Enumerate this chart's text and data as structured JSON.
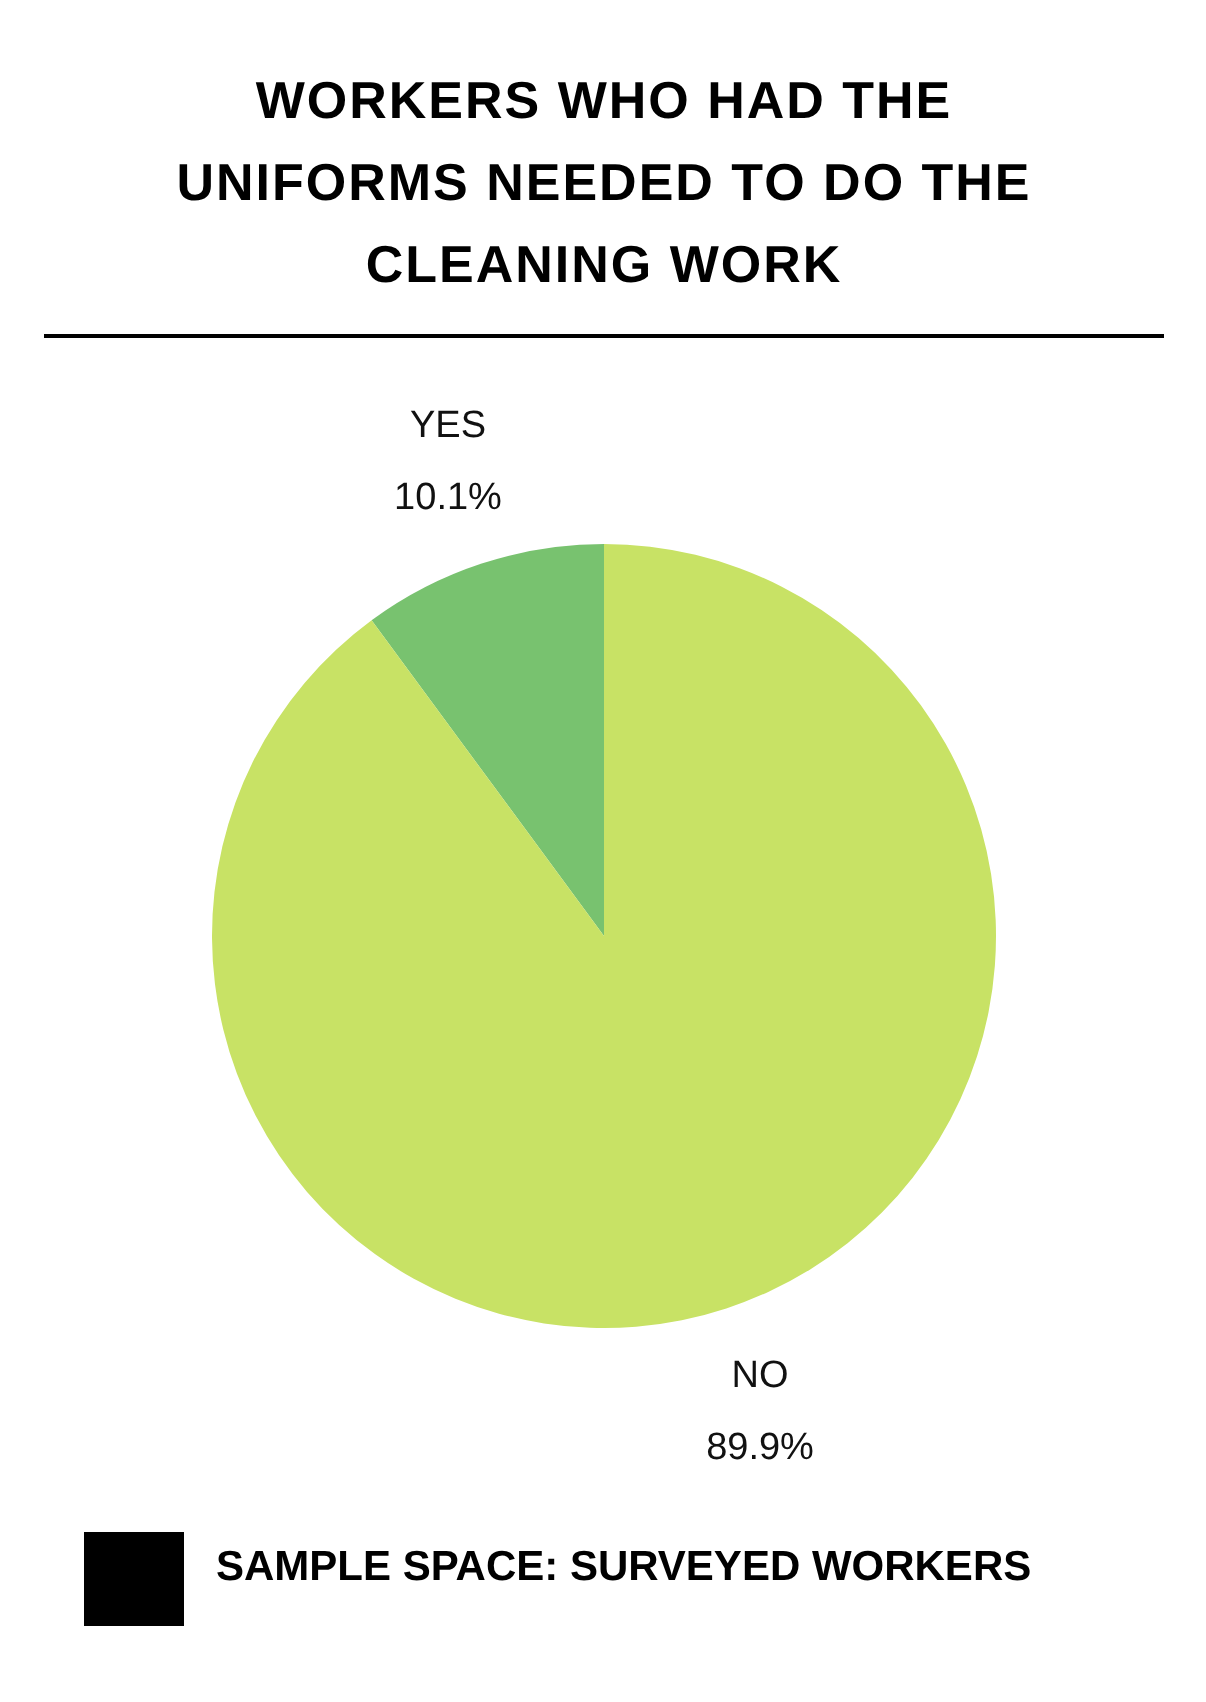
{
  "chart_data": {
    "type": "pie",
    "title": "WORKERS WHO HAD THE UNIFORMS NEEDED TO DO THE CLEANING WORK",
    "categories": [
      "YES",
      "NO"
    ],
    "values": [
      10.1,
      89.9
    ],
    "value_labels": [
      "10.1%",
      "89.9%"
    ],
    "colors": [
      "#78c26f",
      "#c8e265"
    ],
    "annotations": [
      "SAMPLE SPACE: SURVEYED WORKERS"
    ]
  }
}
